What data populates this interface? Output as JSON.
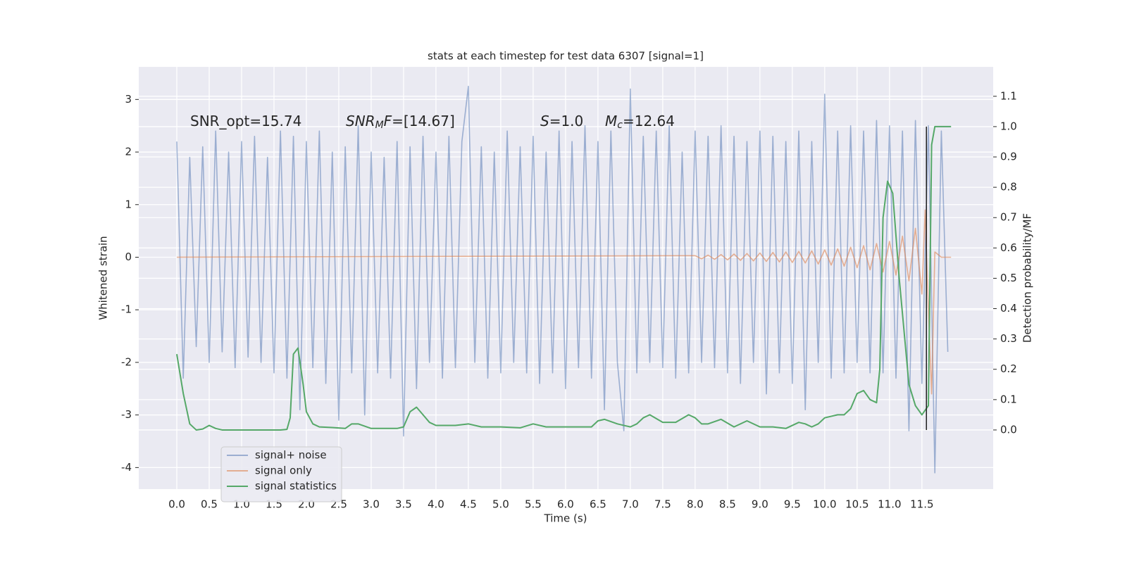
{
  "chart_data": {
    "type": "line",
    "title": "stats at each timestep for test data 6307 [signal=1]",
    "x_label": "Time (s)",
    "y_label": "Whitened strain",
    "y2_label": "Detection probability/MF",
    "xlim": [
      -0.587,
      12.6
    ],
    "ylim": [
      -4.41,
      3.62
    ],
    "y2lim": [
      -0.195,
      1.197
    ],
    "xticks": [
      {
        "value": 0,
        "label": "0.0"
      },
      0.5,
      {
        "value": 1,
        "label": "1.0"
      },
      1.5,
      {
        "value": 2,
        "label": "2.0"
      },
      2.5,
      {
        "value": 3,
        "label": "3.0"
      },
      3.5,
      {
        "value": 4,
        "label": "4.0"
      },
      4.5,
      {
        "value": 5,
        "label": "5.0"
      },
      5.5,
      {
        "value": 6,
        "label": "6.0"
      },
      6.5,
      {
        "value": 7,
        "label": "7.0"
      },
      7.5,
      {
        "value": 8,
        "label": "8.0"
      },
      8.5,
      {
        "value": 9,
        "label": "9.0"
      },
      9.5,
      {
        "value": 10,
        "label": "10.0"
      },
      10.5,
      {
        "value": 11,
        "label": "11.0"
      },
      11.5
    ],
    "yticks": [
      -4,
      -3,
      -2,
      -1,
      0,
      1,
      2,
      3
    ],
    "y2ticks": [
      {
        "value": 0,
        "label": "0.0"
      },
      0.1,
      0.2,
      0.3,
      0.4,
      0.5,
      0.6,
      0.7,
      0.8,
      0.9,
      {
        "value": 1,
        "label": "1.0"
      },
      1.1
    ],
    "grid": true,
    "legend": "lower left",
    "annotations": [
      {
        "parts": [
          {
            "text": "SNR_opt=15.74",
            "style": "normal"
          }
        ]
      },
      {
        "parts": [
          {
            "text": "SNR",
            "style": "italic"
          },
          {
            "text": "M",
            "style": "sub"
          },
          {
            "text": "F",
            "style": "italic"
          },
          {
            "text": "=[14.67]",
            "style": "normal"
          }
        ]
      },
      {
        "parts": [
          {
            "text": "S",
            "style": "italic"
          },
          {
            "text": "=1.0",
            "style": "normal"
          }
        ]
      },
      {
        "parts": [
          {
            "text": "M",
            "style": "italic"
          },
          {
            "text": "c",
            "style": "sub"
          },
          {
            "text": "=12.64",
            "style": "normal"
          }
        ]
      }
    ],
    "vline": {
      "x": 11.57,
      "ymin": 0,
      "ymax": 1,
      "axis": "y2",
      "color": "#222222"
    },
    "series": [
      {
        "name": "signal+ noise",
        "color": "#4c72b0",
        "opacity": 0.5,
        "axis": "y",
        "x": [
          0,
          0.1,
          0.2,
          0.3,
          0.4,
          0.5,
          0.6,
          0.7,
          0.8,
          0.9,
          1,
          1.1,
          1.2,
          1.3,
          1.4,
          1.5,
          1.6,
          1.7,
          1.8,
          1.9,
          2,
          2.1,
          2.2,
          2.3,
          2.4,
          2.5,
          2.6,
          2.7,
          2.8,
          2.9,
          3,
          3.1,
          3.2,
          3.3,
          3.4,
          3.5,
          3.6,
          3.7,
          3.8,
          3.9,
          4,
          4.1,
          4.2,
          4.3,
          4.4,
          4.5,
          4.6,
          4.7,
          4.8,
          4.9,
          5,
          5.1,
          5.2,
          5.3,
          5.4,
          5.5,
          5.6,
          5.7,
          5.8,
          5.9,
          6,
          6.1,
          6.2,
          6.3,
          6.4,
          6.5,
          6.6,
          6.7,
          6.8,
          6.9,
          7,
          7.1,
          7.2,
          7.3,
          7.4,
          7.5,
          7.6,
          7.7,
          7.8,
          7.9,
          8,
          8.1,
          8.2,
          8.3,
          8.4,
          8.5,
          8.6,
          8.7,
          8.8,
          8.9,
          9,
          9.1,
          9.2,
          9.3,
          9.4,
          9.5,
          9.6,
          9.7,
          9.8,
          9.9,
          10,
          10.1,
          10.2,
          10.3,
          10.4,
          10.5,
          10.6,
          10.7,
          10.8,
          10.9,
          11,
          11.1,
          11.2,
          11.3,
          11.4,
          11.5,
          11.6,
          11.7,
          11.8,
          11.9
        ],
        "values": [
          2.2,
          -2.3,
          1.9,
          -1.7,
          2.1,
          -2.0,
          2.4,
          -1.8,
          2.0,
          -2.1,
          2.2,
          -1.9,
          2.3,
          -2.0,
          1.9,
          -2.2,
          2.4,
          -2.3,
          2.3,
          -2.9,
          2.2,
          -2.1,
          2.4,
          -2.4,
          2.0,
          -3.1,
          2.1,
          -2.2,
          2.5,
          -3.0,
          2.0,
          -2.2,
          1.9,
          -2.3,
          2.2,
          -3.4,
          2.1,
          -2.5,
          2.3,
          -2.0,
          2.0,
          -2.3,
          2.3,
          -2.1,
          2.2,
          3.25,
          -2.0,
          2.1,
          -2.3,
          2.0,
          -2.2,
          2.4,
          -2.0,
          2.1,
          -2.2,
          2.3,
          -2.4,
          2.0,
          -2.2,
          2.4,
          -2.5,
          2.2,
          -2.1,
          2.5,
          -2.3,
          2.2,
          -2.9,
          2.4,
          -2.0,
          -3.3,
          3.2,
          -2.2,
          2.3,
          -2.0,
          2.4,
          -2.1,
          2.5,
          -2.3,
          2.0,
          -2.2,
          2.4,
          -2.0,
          2.3,
          -2.1,
          2.5,
          -2.2,
          2.3,
          -2.4,
          2.2,
          -2.0,
          2.4,
          -2.6,
          2.3,
          -2.2,
          2.2,
          -2.4,
          2.4,
          -2.9,
          2.2,
          -2.0,
          3.1,
          -2.3,
          2.4,
          -2.2,
          2.5,
          -2.0,
          2.4,
          -2.2,
          2.6,
          -2.2,
          2.5,
          -2.3,
          2.4,
          -3.3,
          2.6,
          -2.4,
          2.5,
          -4.1,
          2.4,
          -1.8
        ]
      },
      {
        "name": "signal only",
        "color": "#dd8452",
        "opacity": 0.6,
        "axis": "y",
        "x": [
          0,
          8,
          8.1,
          8.2,
          8.3,
          8.4,
          8.5,
          8.6,
          8.7,
          8.8,
          8.9,
          9,
          9.1,
          9.2,
          9.3,
          9.4,
          9.5,
          9.6,
          9.7,
          9.8,
          9.9,
          10,
          10.1,
          10.2,
          10.3,
          10.4,
          10.5,
          10.6,
          10.7,
          10.8,
          10.9,
          11,
          11.1,
          11.2,
          11.3,
          11.4,
          11.5,
          11.55,
          11.6,
          11.65,
          11.7,
          11.8,
          11.95
        ],
        "values": [
          0,
          0.03,
          -0.03,
          0.04,
          -0.04,
          0.05,
          -0.05,
          0.06,
          -0.06,
          0.07,
          -0.07,
          0.08,
          -0.08,
          0.09,
          -0.09,
          0.1,
          -0.1,
          0.11,
          -0.11,
          0.12,
          -0.13,
          0.14,
          -0.15,
          0.16,
          -0.17,
          0.19,
          -0.2,
          0.22,
          -0.24,
          0.26,
          -0.28,
          0.3,
          -0.34,
          0.4,
          -0.45,
          0.55,
          -0.7,
          0.9,
          -1.0,
          -2.6,
          0.1,
          0,
          0
        ]
      },
      {
        "name": "signal statistics",
        "color": "#55a868",
        "opacity": 1,
        "axis": "y2",
        "x": [
          0,
          0.1,
          0.2,
          0.3,
          0.4,
          0.5,
          0.6,
          0.7,
          0.9,
          1,
          1.2,
          1.4,
          1.6,
          1.7,
          1.75,
          1.8,
          1.87,
          1.95,
          2,
          2.1,
          2.2,
          2.4,
          2.6,
          2.7,
          2.8,
          3,
          3.2,
          3.4,
          3.5,
          3.6,
          3.7,
          3.8,
          3.9,
          4,
          4.3,
          4.5,
          4.7,
          5,
          5.3,
          5.5,
          5.7,
          6,
          6.4,
          6.5,
          6.6,
          6.8,
          7,
          7.1,
          7.2,
          7.3,
          7.5,
          7.7,
          7.9,
          8,
          8.1,
          8.2,
          8.4,
          8.6,
          8.8,
          9,
          9.2,
          9.4,
          9.6,
          9.7,
          9.8,
          9.9,
          10,
          10.2,
          10.3,
          10.4,
          10.5,
          10.6,
          10.7,
          10.8,
          10.85,
          10.9,
          10.97,
          11.05,
          11.15,
          11.3,
          11.4,
          11.5,
          11.6,
          11.65,
          11.7,
          11.95
        ],
        "values": [
          0.25,
          0.12,
          0.02,
          0,
          0.003,
          0.015,
          0.005,
          0,
          0,
          0,
          0,
          0,
          0,
          0.002,
          0.04,
          0.25,
          0.27,
          0.15,
          0.06,
          0.02,
          0.01,
          0.008,
          0.005,
          0.02,
          0.02,
          0.005,
          0.005,
          0.005,
          0.01,
          0.06,
          0.075,
          0.05,
          0.025,
          0.015,
          0.015,
          0.02,
          0.01,
          0.01,
          0.007,
          0.02,
          0.01,
          0.01,
          0.01,
          0.03,
          0.035,
          0.02,
          0.01,
          0.02,
          0.04,
          0.05,
          0.025,
          0.025,
          0.05,
          0.04,
          0.02,
          0.02,
          0.035,
          0.01,
          0.03,
          0.01,
          0.01,
          0.005,
          0.025,
          0.02,
          0.01,
          0.02,
          0.04,
          0.05,
          0.05,
          0.07,
          0.12,
          0.13,
          0.1,
          0.09,
          0.2,
          0.7,
          0.82,
          0.78,
          0.5,
          0.15,
          0.08,
          0.05,
          0.08,
          0.94,
          1,
          1
        ]
      }
    ]
  }
}
